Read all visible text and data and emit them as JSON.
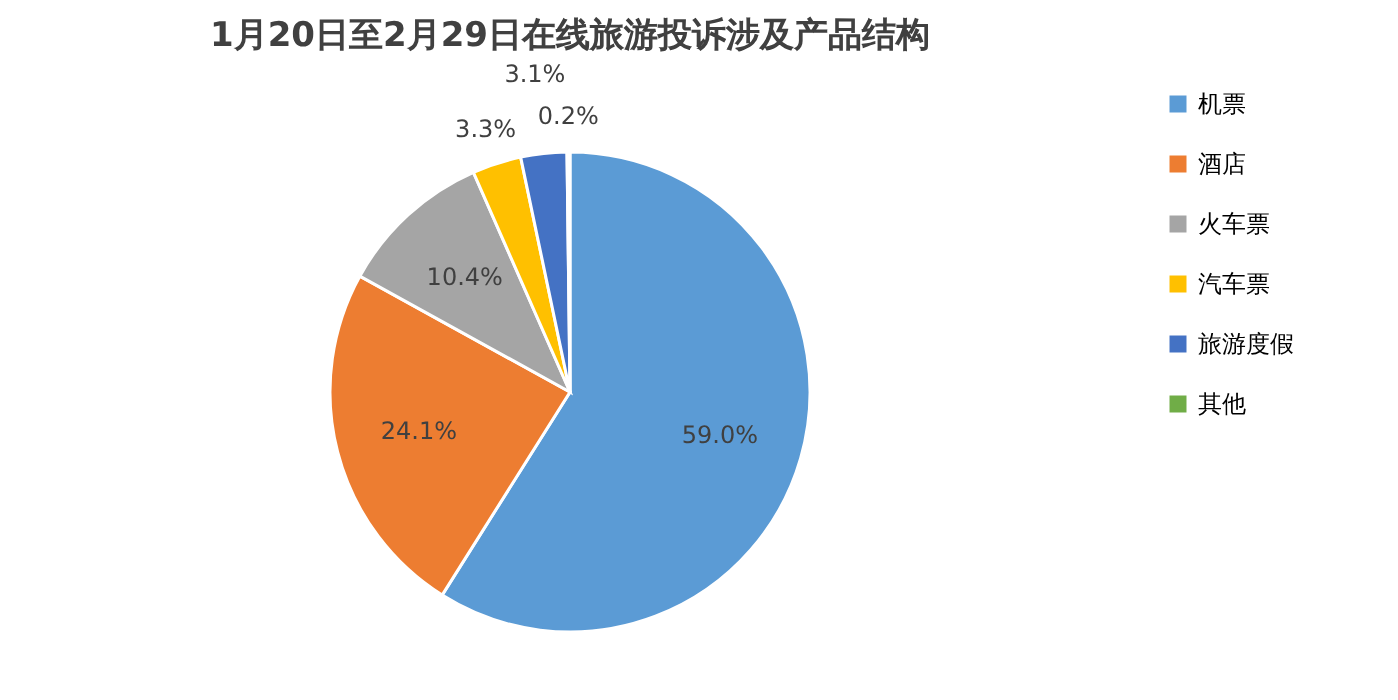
{
  "chart_data": {
    "type": "pie",
    "title": "1月20日至2月29日在线旅游投诉涉及产品结构",
    "categories": [
      "机票",
      "酒店",
      "火车票",
      "汽车票",
      "旅游度假",
      "其他"
    ],
    "values": [
      59.0,
      24.1,
      10.4,
      3.3,
      3.1,
      0.2
    ],
    "colors": [
      "#5b9bd5",
      "#ed7d31",
      "#a5a5a5",
      "#ffc000",
      "#4472c4",
      "#70ad47"
    ],
    "value_labels": [
      "59.0%",
      "24.1%",
      "10.4%",
      "3.3%",
      "3.1%",
      "0.2%"
    ],
    "legend": "right"
  }
}
